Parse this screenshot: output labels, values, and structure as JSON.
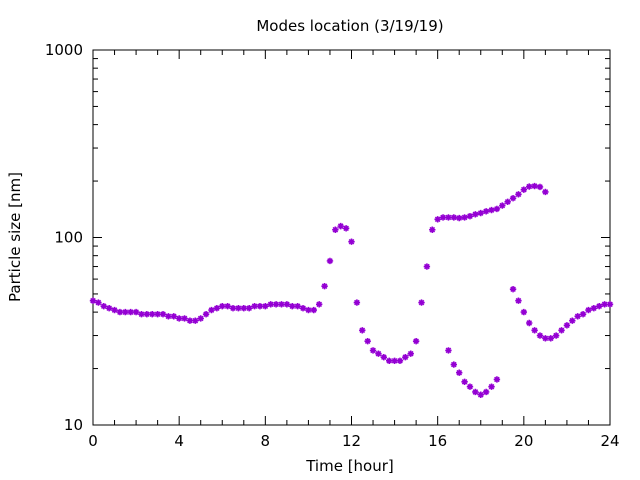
{
  "chart_data": {
    "type": "scatter",
    "title": "Modes location (3/19/19)",
    "xlabel": "Time [hour]",
    "ylabel": "Particle size [nm]",
    "xlim": [
      0,
      24
    ],
    "ylim": [
      10,
      1000
    ],
    "yscale": "log",
    "x_ticks": [
      0,
      4,
      8,
      12,
      16,
      20,
      24
    ],
    "x_tick_labels": [
      "0",
      "4",
      "8",
      "12",
      "16",
      "20",
      "24"
    ],
    "y_ticks": [
      10,
      100,
      1000
    ],
    "y_tick_labels": [
      "10",
      "100",
      "1000"
    ],
    "grid": false,
    "legend": "none",
    "marker": "asterisk",
    "colors": {
      "series": "#9400d3",
      "axis": "#000000"
    },
    "series": [
      {
        "segments": [
          {
            "x": [
              0.0,
              0.25,
              0.5,
              0.75,
              1.0,
              1.25,
              1.5,
              1.75,
              2.0,
              2.25,
              2.5,
              2.75,
              3.0,
              3.25,
              3.5,
              3.75,
              4.0,
              4.25,
              4.5,
              4.75,
              5.0,
              5.25,
              5.5,
              5.75,
              6.0,
              6.25,
              6.5,
              6.75,
              7.0,
              7.25,
              7.5,
              7.75,
              8.0,
              8.25,
              8.5,
              8.75,
              9.0,
              9.25,
              9.5,
              9.75,
              10.0,
              10.25,
              10.5,
              10.75,
              11.0,
              11.25,
              11.5,
              11.75,
              12.0,
              12.25,
              12.5,
              12.75,
              13.0,
              13.25,
              13.5,
              13.75,
              14.0,
              14.25,
              14.5,
              14.75,
              15.0,
              15.25,
              15.5,
              15.75,
              16.0,
              16.25,
              16.5,
              16.75,
              17.0,
              17.25,
              17.5,
              17.75,
              18.0,
              18.25,
              18.5,
              18.75,
              19.0,
              19.25,
              19.5,
              19.75,
              20.0,
              20.25,
              20.5,
              20.75,
              21.0
            ],
            "y": [
              46,
              45,
              43,
              42,
              41,
              40,
              40,
              40,
              40,
              39,
              39,
              39,
              39,
              39,
              38,
              38,
              37,
              37,
              36,
              36,
              37,
              39,
              41,
              42,
              43,
              43,
              42,
              42,
              42,
              42,
              43,
              43,
              43,
              44,
              44,
              44,
              44,
              43,
              43,
              42,
              41,
              41,
              44,
              55,
              75,
              110,
              115,
              112,
              95,
              45,
              32,
              28,
              25,
              24,
              23,
              22,
              22,
              22,
              23,
              24,
              28,
              45,
              70,
              110,
              125,
              128,
              128,
              128,
              127,
              128,
              130,
              133,
              135,
              138,
              140,
              142,
              148,
              155,
              162,
              170,
              180,
              187,
              188,
              186,
              175
            ]
          },
          {
            "x": [
              16.5,
              16.75,
              17.0,
              17.25,
              17.5,
              17.75,
              18.0,
              18.25,
              18.5,
              18.75
            ],
            "y": [
              25,
              21,
              19,
              17,
              16,
              15,
              14.5,
              15,
              16,
              17.5
            ]
          },
          {
            "x": [
              19.5,
              19.75,
              20.0,
              20.25,
              20.5,
              20.75,
              21.0,
              21.25,
              21.5,
              21.75,
              22.0,
              22.25,
              22.5,
              22.75,
              23.0,
              23.25,
              23.5,
              23.75,
              24.0
            ],
            "y": [
              53,
              46,
              40,
              35,
              32,
              30,
              29,
              29,
              30,
              32,
              34,
              36,
              38,
              39,
              41,
              42,
              43,
              44,
              44
            ]
          }
        ]
      }
    ]
  }
}
